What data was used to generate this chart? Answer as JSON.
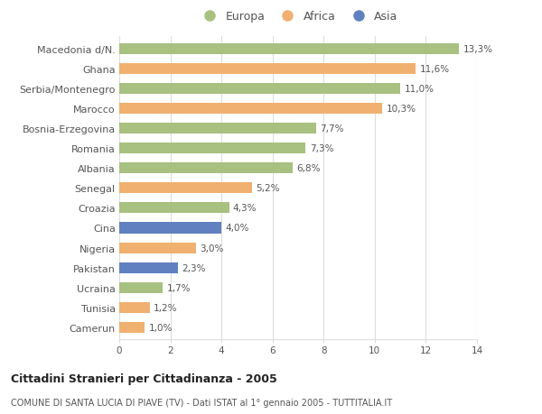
{
  "categories": [
    "Macedonia d/N.",
    "Ghana",
    "Serbia/Montenegro",
    "Marocco",
    "Bosnia-Erzegovina",
    "Romania",
    "Albania",
    "Senegal",
    "Croazia",
    "Cina",
    "Nigeria",
    "Pakistan",
    "Ucraina",
    "Tunisia",
    "Camerun"
  ],
  "values": [
    13.3,
    11.6,
    11.0,
    10.3,
    7.7,
    7.3,
    6.8,
    5.2,
    4.3,
    4.0,
    3.0,
    2.3,
    1.7,
    1.2,
    1.0
  ],
  "labels": [
    "13,3%",
    "11,6%",
    "11,0%",
    "10,3%",
    "7,7%",
    "7,3%",
    "6,8%",
    "5,2%",
    "4,3%",
    "4,0%",
    "3,0%",
    "2,3%",
    "1,7%",
    "1,2%",
    "1,0%"
  ],
  "continents": [
    "Europa",
    "Africa",
    "Europa",
    "Africa",
    "Europa",
    "Europa",
    "Europa",
    "Africa",
    "Europa",
    "Asia",
    "Africa",
    "Asia",
    "Europa",
    "Africa",
    "Africa"
  ],
  "colors": {
    "Europa": "#a8c080",
    "Africa": "#f0b070",
    "Asia": "#6080c0"
  },
  "title1": "Cittadini Stranieri per Cittadinanza - 2005",
  "title2": "COMUNE DI SANTA LUCIA DI PIAVE (TV) - Dati ISTAT al 1° gennaio 2005 - TUTTITALIA.IT",
  "xlim": [
    0,
    14
  ],
  "xticks": [
    0,
    2,
    4,
    6,
    8,
    10,
    12,
    14
  ],
  "background_color": "#ffffff",
  "grid_color": "#dddddd",
  "bar_height": 0.55,
  "text_color": "#555555",
  "label_fontsize": 7.5,
  "tick_fontsize": 7.5,
  "ytick_fontsize": 8.0
}
